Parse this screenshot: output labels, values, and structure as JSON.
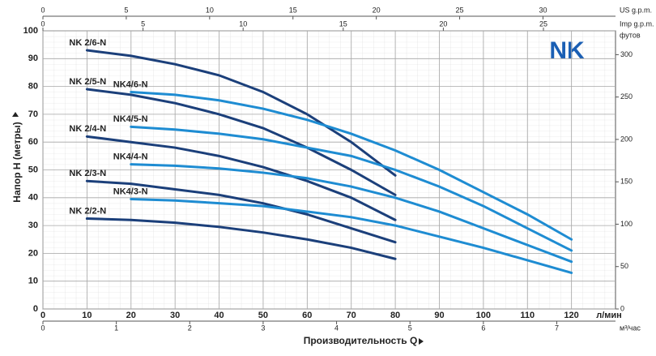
{
  "logo": "NK",
  "chart_data": {
    "type": "line",
    "x_title": "Производительность Q",
    "x_unit": "л/мин",
    "ylabel": "Напор H (метры)",
    "xlim": [
      0,
      130
    ],
    "xticks": [
      0,
      10,
      20,
      30,
      40,
      50,
      60,
      70,
      80,
      90,
      100,
      110,
      120
    ],
    "ylim": [
      0,
      100
    ],
    "yticks": [
      0,
      10,
      20,
      30,
      40,
      50,
      60,
      70,
      80,
      90,
      100
    ],
    "grid": true,
    "top_axis_us": {
      "label": "US g.p.m.",
      "lim": [
        0,
        34.35
      ],
      "ticks": [
        0,
        5,
        10,
        15,
        20,
        25,
        30
      ]
    },
    "top_axis_imp": {
      "label": "Imp g.p.m.",
      "lim": [
        0,
        28.6
      ],
      "ticks": [
        0,
        5,
        10,
        15,
        20,
        25
      ]
    },
    "bottom_axis_m3": {
      "label": "м³/час",
      "lim": [
        0,
        7.8
      ],
      "ticks": [
        0,
        1,
        2,
        3,
        4,
        5,
        6,
        7
      ]
    },
    "right_axis_ft": {
      "label": "футов",
      "lim": [
        0,
        328.1
      ],
      "ticks": [
        0,
        50,
        100,
        150,
        200,
        250,
        300
      ]
    },
    "series": [
      {
        "name": "NK 2/6-N",
        "color": "#1b3f7a",
        "x": [
          10,
          20,
          30,
          40,
          50,
          60,
          70,
          80
        ],
        "values": [
          93,
          91,
          88,
          84,
          78,
          70,
          60,
          48
        ]
      },
      {
        "name": "NK 2/5-N",
        "color": "#1b3f7a",
        "x": [
          10,
          20,
          30,
          40,
          50,
          60,
          70,
          80
        ],
        "values": [
          79,
          77,
          74,
          70,
          65,
          58,
          50,
          41
        ]
      },
      {
        "name": "NK 2/4-N",
        "color": "#1b3f7a",
        "x": [
          10,
          20,
          30,
          40,
          50,
          60,
          70,
          80
        ],
        "values": [
          62,
          60,
          58,
          55,
          51,
          46,
          40,
          32
        ]
      },
      {
        "name": "NK 2/3-N",
        "color": "#1b3f7a",
        "x": [
          10,
          20,
          30,
          40,
          50,
          60,
          70,
          80
        ],
        "values": [
          46,
          45,
          43,
          41,
          38,
          34,
          29,
          24
        ]
      },
      {
        "name": "NK 2/2-N",
        "color": "#1b3f7a",
        "x": [
          10,
          20,
          30,
          40,
          50,
          60,
          70,
          80
        ],
        "values": [
          32.5,
          32,
          31,
          29.5,
          27.5,
          25,
          22,
          18
        ]
      },
      {
        "name": "NK4/6-N",
        "color": "#1e8cd2",
        "x": [
          20,
          30,
          40,
          50,
          60,
          70,
          80,
          90,
          100,
          110,
          120
        ],
        "values": [
          78,
          77,
          75,
          72,
          68,
          63,
          57,
          50,
          42,
          34,
          25
        ]
      },
      {
        "name": "NK4/5-N",
        "color": "#1e8cd2",
        "x": [
          20,
          30,
          40,
          50,
          60,
          70,
          80,
          90,
          100,
          110,
          120
        ],
        "values": [
          65.5,
          64.5,
          63,
          61,
          58,
          55,
          50,
          44,
          37,
          29,
          21
        ]
      },
      {
        "name": "NK4/4-N",
        "color": "#1e8cd2",
        "x": [
          20,
          30,
          40,
          50,
          60,
          70,
          80,
          90,
          100,
          110,
          120
        ],
        "values": [
          52,
          51.5,
          50.5,
          49,
          47,
          44,
          40,
          35,
          29,
          23,
          17
        ]
      },
      {
        "name": "NK4/3-N",
        "color": "#1e8cd2",
        "x": [
          20,
          30,
          40,
          50,
          60,
          70,
          80,
          90,
          100,
          110,
          120
        ],
        "values": [
          39.5,
          39,
          38,
          37,
          35,
          33,
          30,
          26,
          22,
          17.5,
          13
        ]
      }
    ]
  }
}
